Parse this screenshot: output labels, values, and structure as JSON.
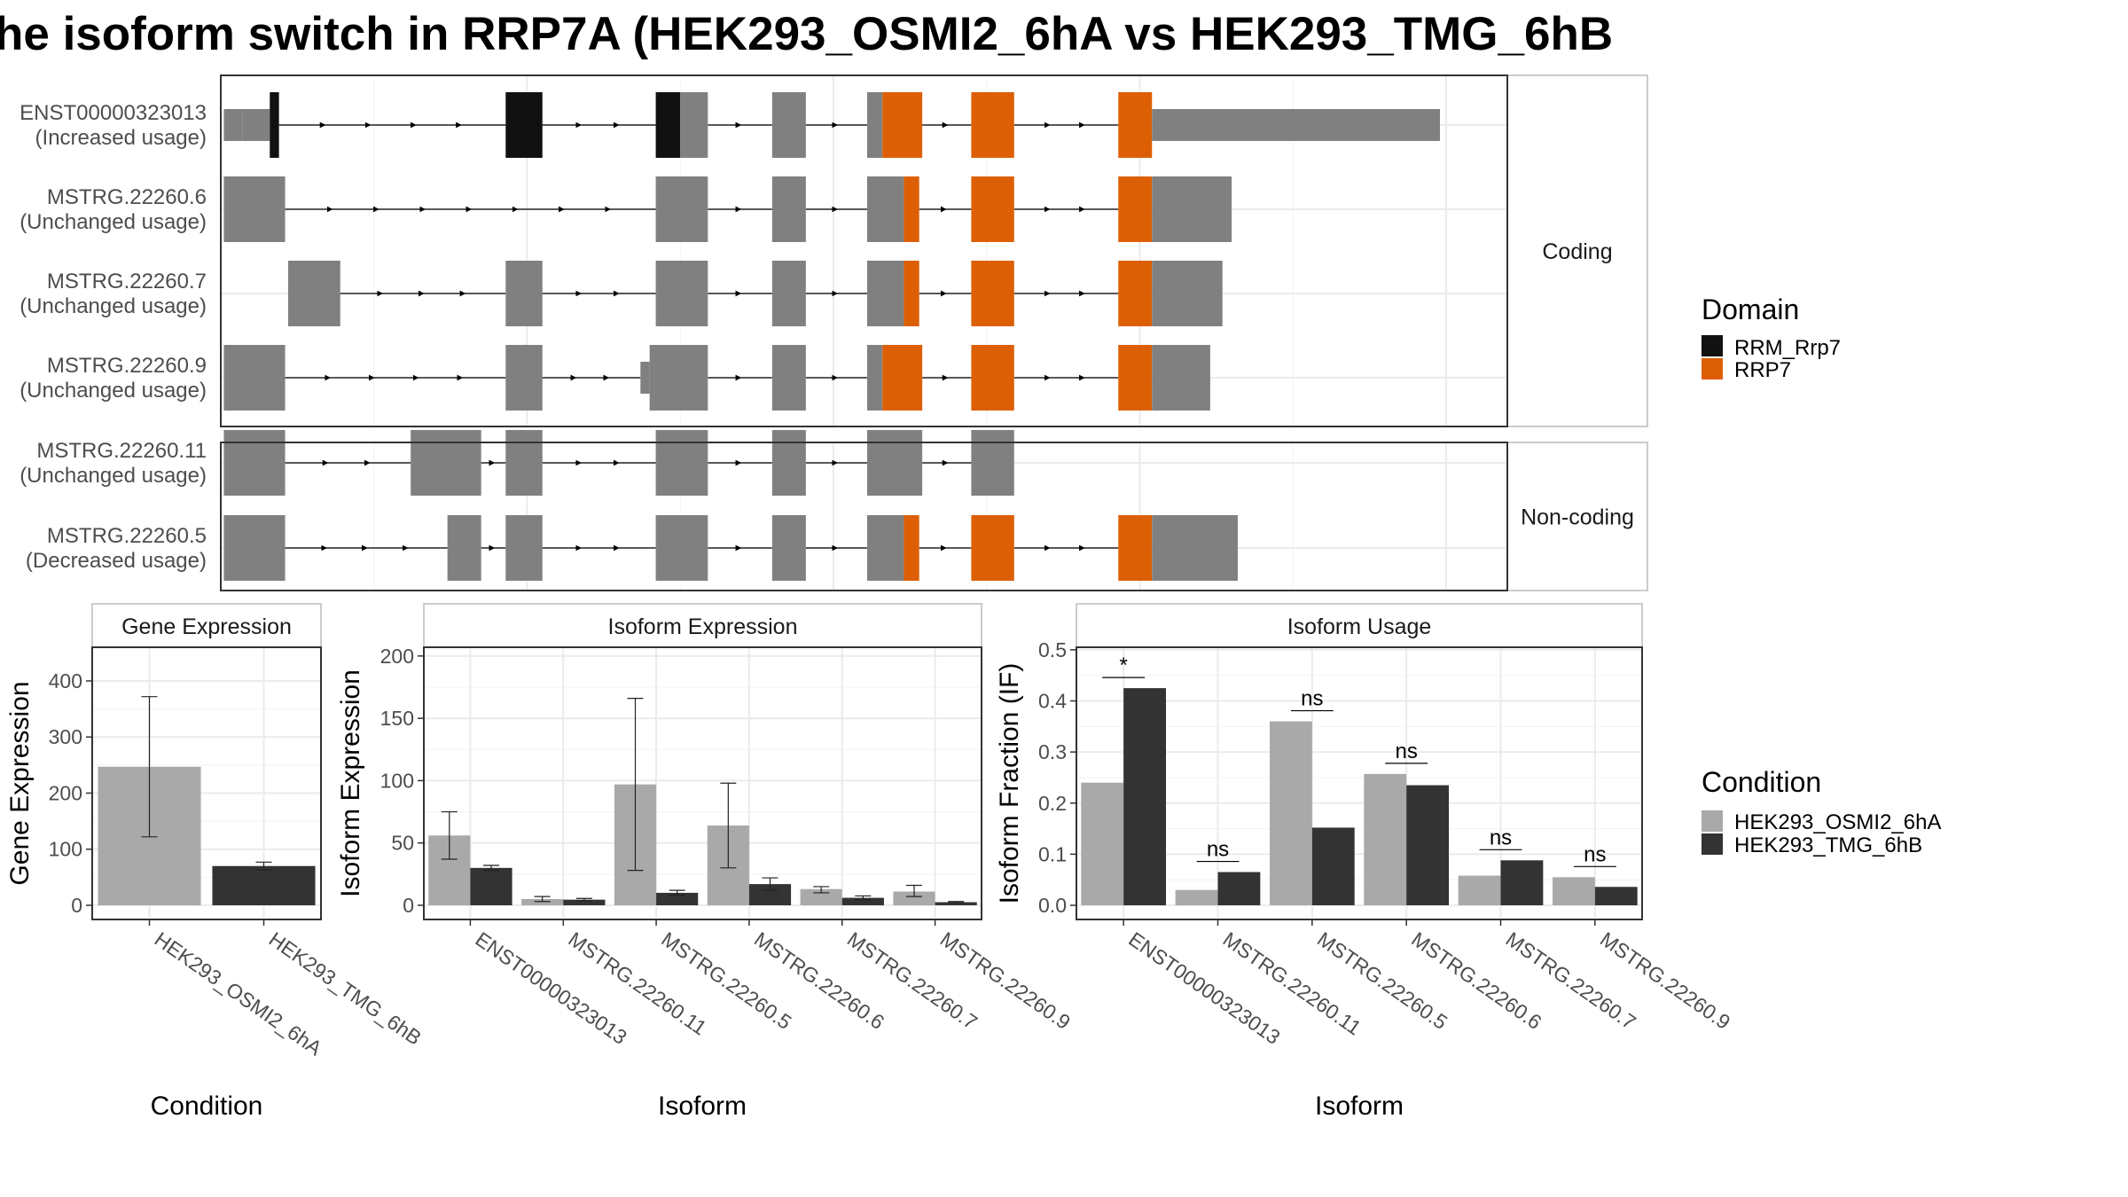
{
  "title": "he isoform switch in RRP7A (HEK293_OSMI2_6hA vs HEK293_TMG_6hB",
  "colors": {
    "exon": "#808080",
    "rrm_rrp7": "#111111",
    "rrp7": "#DD5F05",
    "cond_a": "#A9A9A9",
    "cond_b": "#333333"
  },
  "structure": {
    "groups": [
      {
        "label": "Coding",
        "rows": [
          0,
          1,
          2,
          3
        ]
      },
      {
        "label": "Non-coding",
        "rows": [
          4,
          5
        ]
      }
    ],
    "isoforms": [
      {
        "id": "ENST00000323013",
        "usage": "(Increased usage)",
        "exons": [
          [
            0.5,
            3.5,
            "u"
          ],
          [
            3.5,
            8,
            "u"
          ],
          [
            8,
            9.5,
            "rrm_rrp7"
          ],
          [
            46.5,
            52.5,
            "rrm_rrp7"
          ],
          [
            71,
            75,
            "rrm_rrp7"
          ],
          [
            75,
            79.5,
            "c"
          ],
          [
            90,
            95.5,
            "c"
          ],
          [
            105.5,
            108,
            "c"
          ],
          [
            108,
            114.5,
            "rrp7"
          ],
          [
            122.5,
            129.5,
            "rrp7"
          ],
          [
            146.5,
            152,
            "rrp7"
          ],
          [
            152,
            199,
            "u"
          ]
        ]
      },
      {
        "id": "MSTRG.22260.6",
        "usage": "(Unchanged usage)",
        "exons": [
          [
            0.5,
            10.5,
            "c"
          ],
          [
            71,
            79.5,
            "c"
          ],
          [
            90,
            95.5,
            "c"
          ],
          [
            105.5,
            111.5,
            "c"
          ],
          [
            111.5,
            114,
            "rrp7"
          ],
          [
            122.5,
            129.5,
            "rrp7"
          ],
          [
            146.5,
            152,
            "rrp7"
          ],
          [
            152,
            165,
            "c"
          ]
        ]
      },
      {
        "id": "MSTRG.22260.7",
        "usage": "(Unchanged usage)",
        "exons": [
          [
            11,
            19.5,
            "c"
          ],
          [
            46.5,
            52.5,
            "c"
          ],
          [
            71,
            79.5,
            "c"
          ],
          [
            90,
            95.5,
            "c"
          ],
          [
            105.5,
            111.5,
            "c"
          ],
          [
            111.5,
            114,
            "rrp7"
          ],
          [
            122.5,
            129.5,
            "rrp7"
          ],
          [
            146.5,
            152,
            "rrp7"
          ],
          [
            152,
            163.5,
            "c"
          ]
        ]
      },
      {
        "id": "MSTRG.22260.9",
        "usage": "(Unchanged usage)",
        "exons": [
          [
            0.5,
            10.5,
            "c"
          ],
          [
            46.5,
            52.5,
            "c"
          ],
          [
            68.5,
            70,
            "u"
          ],
          [
            70,
            79.5,
            "c"
          ],
          [
            90,
            95.5,
            "c"
          ],
          [
            105.5,
            108,
            "c"
          ],
          [
            108,
            114.5,
            "rrp7"
          ],
          [
            122.5,
            129.5,
            "rrp7"
          ],
          [
            146.5,
            152,
            "rrp7"
          ],
          [
            152,
            161.5,
            "c"
          ]
        ]
      },
      {
        "id": "MSTRG.22260.11",
        "usage": "(Unchanged usage)",
        "exons": [
          [
            0.5,
            10.5,
            "c"
          ],
          [
            31,
            42.5,
            "c"
          ],
          [
            46.5,
            52.5,
            "c"
          ],
          [
            71,
            79.5,
            "c"
          ],
          [
            90,
            95.5,
            "c"
          ],
          [
            105.5,
            114.5,
            "c"
          ],
          [
            122.5,
            129.5,
            "c"
          ]
        ]
      },
      {
        "id": "MSTRG.22260.5",
        "usage": "(Decreased usage)",
        "exons": [
          [
            0.5,
            10.5,
            "c"
          ],
          [
            37,
            42.5,
            "c"
          ],
          [
            46.5,
            52.5,
            "c"
          ],
          [
            71,
            79.5,
            "c"
          ],
          [
            90,
            95.5,
            "c"
          ],
          [
            105.5,
            111.5,
            "c"
          ],
          [
            111.5,
            114,
            "rrp7"
          ],
          [
            122.5,
            129.5,
            "rrp7"
          ],
          [
            146.5,
            152,
            "rrp7"
          ],
          [
            152,
            166,
            "c"
          ]
        ]
      }
    ]
  },
  "domain_legend": {
    "title": "Domain",
    "items": [
      {
        "label": "RRM_Rrp7",
        "color_key": "rrm_rrp7"
      },
      {
        "label": "RRP7",
        "color_key": "rrp7"
      }
    ]
  },
  "condition_legend": {
    "title": "Condition",
    "items": [
      {
        "label": "HEK293_OSMI2_6hA",
        "color_key": "cond_a"
      },
      {
        "label": "HEK293_TMG_6hB",
        "color_key": "cond_b"
      }
    ]
  },
  "chart_data": [
    {
      "type": "bar",
      "title": "Gene Expression",
      "xlabel": "Condition",
      "ylabel": "Gene Expression",
      "ylim": [
        0,
        460
      ],
      "yticks": [
        0,
        100,
        200,
        300,
        400
      ],
      "categories": [
        "HEK293_OSMI2_6hA",
        "HEK293_TMG_6hB"
      ],
      "series": [
        {
          "values": [
            247,
            70
          ],
          "err_low": [
            122,
            63
          ],
          "err_high": [
            372,
            77
          ]
        }
      ]
    },
    {
      "type": "bar",
      "title": "Isoform Expression",
      "xlabel": "Isoform",
      "ylabel": "Isoform Expression",
      "ylim": [
        0,
        207
      ],
      "yticks": [
        0,
        50,
        100,
        150,
        200
      ],
      "categories": [
        "ENST00000323013",
        "MSTRG.22260.11",
        "MSTRG.22260.5",
        "MSTRG.22260.6",
        "MSTRG.22260.7",
        "MSTRG.22260.9"
      ],
      "series": [
        {
          "name": "HEK293_OSMI2_6hA",
          "values": [
            56,
            5,
            97,
            64,
            13,
            11
          ],
          "err_low": [
            37,
            3,
            28,
            30,
            10,
            7
          ],
          "err_high": [
            75,
            7,
            166,
            98,
            15,
            16
          ]
        },
        {
          "name": "HEK293_TMG_6hB",
          "values": [
            30,
            4.5,
            10,
            17,
            6,
            2.5
          ],
          "err_low": [
            28,
            3.5,
            8,
            12,
            4.5,
            2
          ],
          "err_high": [
            32,
            5.5,
            12,
            22,
            7.5,
            3
          ]
        }
      ]
    },
    {
      "type": "bar",
      "title": "Isoform Usage",
      "xlabel": "Isoform",
      "ylabel": "Isoform Fraction (IF)",
      "ylim": [
        0,
        0.505
      ],
      "yticks": [
        0,
        0.1,
        0.2,
        0.3,
        0.4,
        0.5
      ],
      "ytick_labels": [
        "0.0",
        "0.1",
        "0.2",
        "0.3",
        "0.4",
        "0.5"
      ],
      "categories": [
        "ENST00000323013",
        "MSTRG.22260.11",
        "MSTRG.22260.5",
        "MSTRG.22260.6",
        "MSTRG.22260.7",
        "MSTRG.22260.9"
      ],
      "series": [
        {
          "name": "HEK293_OSMI2_6hA",
          "values": [
            0.24,
            0.03,
            0.36,
            0.257,
            0.058,
            0.055
          ]
        },
        {
          "name": "HEK293_TMG_6hB",
          "values": [
            0.425,
            0.065,
            0.152,
            0.235,
            0.088,
            0.036
          ]
        }
      ],
      "annotations": [
        "*",
        "ns",
        "ns",
        "ns",
        "ns",
        "ns"
      ]
    }
  ]
}
